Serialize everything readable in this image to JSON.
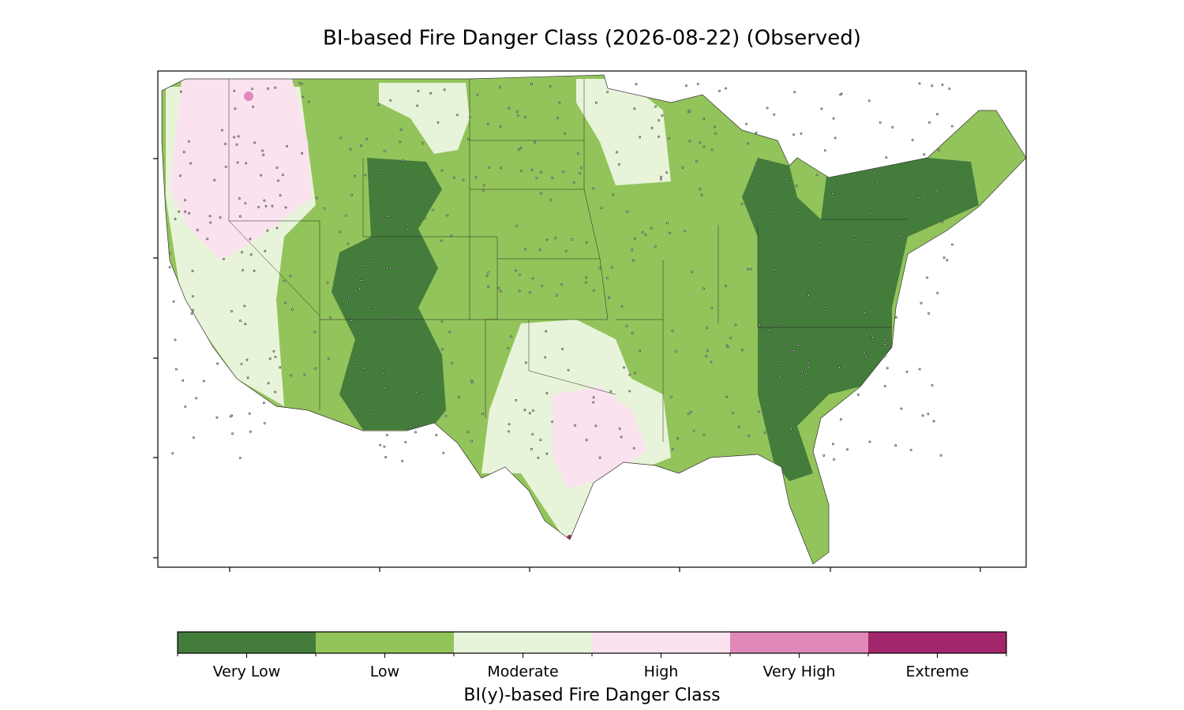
{
  "title": "BI-based Fire Danger Class (2026-08-22) (Observed)",
  "colorbar": {
    "label": "BI(y)-based Fire Danger Class",
    "classes": [
      {
        "label": "Very Low",
        "color": "#447c3c"
      },
      {
        "label": "Low",
        "color": "#93c45b"
      },
      {
        "label": "Moderate",
        "color": "#e8f4da"
      },
      {
        "label": "High",
        "color": "#fbe2ef"
      },
      {
        "label": "Very High",
        "color": "#e088b9"
      },
      {
        "label": "Extreme",
        "color": "#a1266c"
      }
    ]
  }
}
